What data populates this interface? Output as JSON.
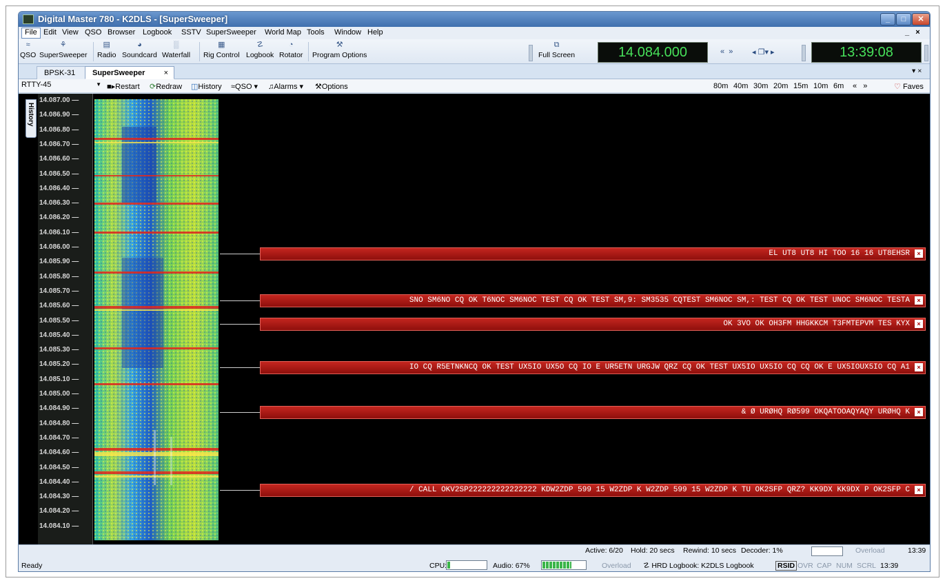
{
  "window": {
    "title": "Digital Master 780 - K2DLS - [SuperSweeper]"
  },
  "menu": [
    "File",
    "Edit",
    "View",
    "QSO",
    "Browser",
    "Logbook",
    "SSTV",
    "SuperSweeper",
    "World Map",
    "Tools",
    "Window",
    "Help"
  ],
  "mdi_controls": "_   ×",
  "toolbar": {
    "buttons": [
      {
        "label": "QSO",
        "icon": "qso-icon",
        "glyph": "≈"
      },
      {
        "label": "SuperSweeper",
        "icon": "sweeper-icon",
        "glyph": "⚘"
      },
      {
        "label": "Radio",
        "icon": "radio-icon",
        "glyph": "▤"
      },
      {
        "label": "Soundcard",
        "icon": "soundcard-icon",
        "glyph": "◕"
      },
      {
        "label": "Waterfall",
        "icon": "waterfall-icon",
        "glyph": "░"
      },
      {
        "label": "Rig Control",
        "icon": "rig-control-icon",
        "glyph": "▦"
      },
      {
        "label": "Logbook",
        "icon": "logbook-icon",
        "glyph": "☡"
      },
      {
        "label": "Rotator",
        "icon": "rotator-icon",
        "glyph": "◔"
      },
      {
        "label": "Program Options",
        "icon": "options-icon",
        "glyph": "⚒"
      }
    ],
    "full_screen": "Full Screen",
    "frequency": "14.084.000",
    "time": "13:39:08",
    "nav_rewind": "«  »",
    "nav_play": "◂ ❐▾ ▸"
  },
  "tabs": [
    {
      "label": "BPSK-31",
      "active": false
    },
    {
      "label": "SuperSweeper",
      "active": true
    }
  ],
  "tab_close": "×",
  "tab_menu": "▾ ×",
  "subtoolbar": {
    "mode": "RTTY-45",
    "restart": "Restart",
    "redraw": "Redraw",
    "history": "History",
    "qso": "QSO",
    "alarms": "Alarms",
    "options": "Options",
    "bands": [
      "80m",
      "40m",
      "30m",
      "20m",
      "15m",
      "10m",
      "6m"
    ],
    "band_nav": "«   »",
    "faves": "Faves"
  },
  "history_label": "History",
  "scale_ticks": [
    "14.087.00",
    "14.086.90",
    "14.086.80",
    "14.086.70",
    "14.086.60",
    "14.086.50",
    "14.086.40",
    "14.086.30",
    "14.086.20",
    "14.086.10",
    "14.086.00",
    "14.085.90",
    "14.085.80",
    "14.085.70",
    "14.085.60",
    "14.085.50",
    "14.085.40",
    "14.085.30",
    "14.085.20",
    "14.085.10",
    "14.085.00",
    "14.084.90",
    "14.084.80",
    "14.084.70",
    "14.084.60",
    "14.084.50",
    "14.084.40",
    "14.084.30",
    "14.084.20",
    "14.084.10"
  ],
  "decoders": [
    {
      "text": "EL UT8 UT8 HI TOO 16 16 UT8EHSR",
      "close": "×"
    },
    {
      "text": "SNO SM6NO CQ OK T6NOC SM6NOC TEST CQ OK TEST SM,9: SM3535 CQTEST SM6NOC SM,: TEST CQ OK TEST UNOC SM6NOC TESTA",
      "close": "×"
    },
    {
      "text": "OK 3VO OK OH3FM HHGKKCM T3FMTEPVM TES KYX",
      "close": "×"
    },
    {
      "text": "IO CQ R5ETNKNCQ OK TEST UX5IO UX5O CQ IO E UR5ETN URGJW QRZ CQ OK TEST UX5IO UX5IO CQ CQ OK E UX5IOUX5IO CQ A1",
      "close": "×"
    },
    {
      "text": "& Ø URØHQ RØ599 OKQATOOAQYAQY URØHQ K",
      "close": "×"
    },
    {
      "text": "/ CALL OKV2SP222222222222222 KDW2ZDP 599 15 W2ZDP K W2ZDP 599 15 W2ZDP K TU OK2SFP QRZ? KK9DX KK9DX P OK2SFP C",
      "close": "×"
    }
  ],
  "status": {
    "active": "Active: 6/20",
    "hold": "Hold: 20 secs",
    "rewind": "Rewind: 10 secs",
    "decoder": "Decoder: 1%",
    "overload_top": "Overload",
    "time_top": "13:39",
    "ready": "Ready",
    "cpu": "CPU: 3%",
    "audio": "Audio: 67%",
    "overload": "Overload",
    "logbook": "HRD Logbook: K2DLS Logbook",
    "rsid": "RSID",
    "ovr": "OVR",
    "cap": "CAP",
    "num": "NUM",
    "scrl": "SCRL",
    "time": "13:39",
    "cpu_level": 0.03,
    "audio_level": 0.67
  },
  "colors": {
    "lcd_green": "#47e05a",
    "decoder_red": "#b71d17"
  }
}
